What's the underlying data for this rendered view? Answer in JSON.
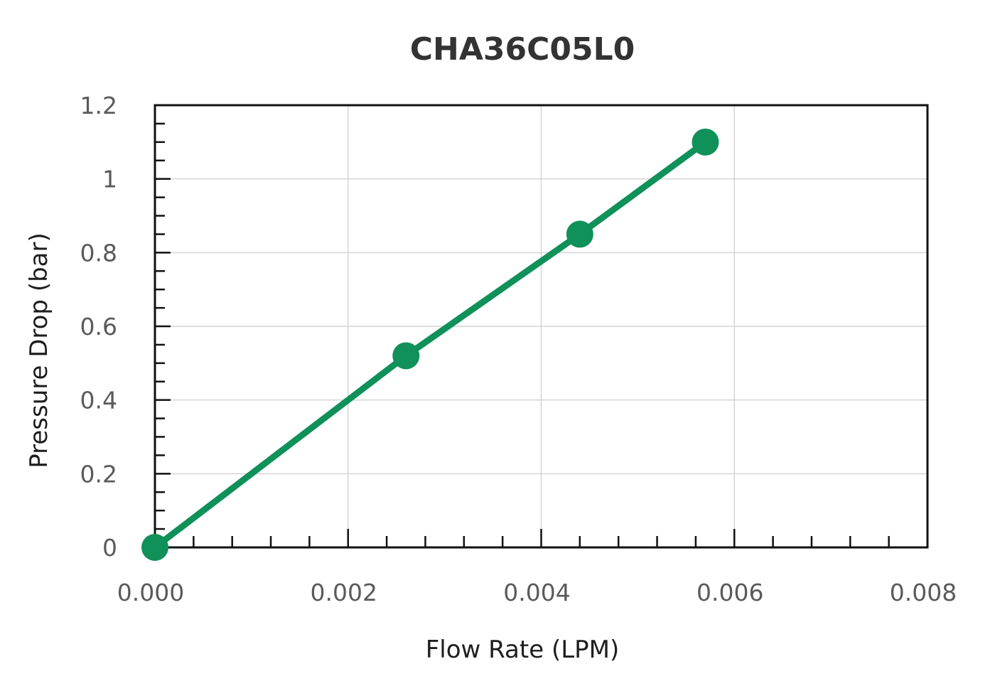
{
  "chart_data": {
    "type": "line",
    "title": "CHA36C05L0",
    "xlabel": "Flow Rate (LPM)",
    "ylabel": "Pressure Drop (bar)",
    "xlim": [
      0,
      0.008
    ],
    "ylim": [
      0,
      1.2
    ],
    "x_ticks": [
      "0.000",
      "0.002",
      "0.004",
      "0.006",
      "0.008"
    ],
    "y_ticks": [
      "0",
      "0.2",
      "0.4",
      "0.6",
      "0.8",
      "1",
      "1.2"
    ],
    "grid": true,
    "legend": "none",
    "series": [
      {
        "color": "#0f9159",
        "points": [
          {
            "x": 0.0,
            "y": 0.0
          },
          {
            "x": 0.0026,
            "y": 0.52
          },
          {
            "x": 0.0044,
            "y": 0.85
          },
          {
            "x": 0.0057,
            "y": 1.1
          }
        ]
      }
    ],
    "colors": {
      "series": "#0f9159",
      "grid": "#d4d4d4",
      "axis": "#111111",
      "title": "#333333"
    }
  }
}
